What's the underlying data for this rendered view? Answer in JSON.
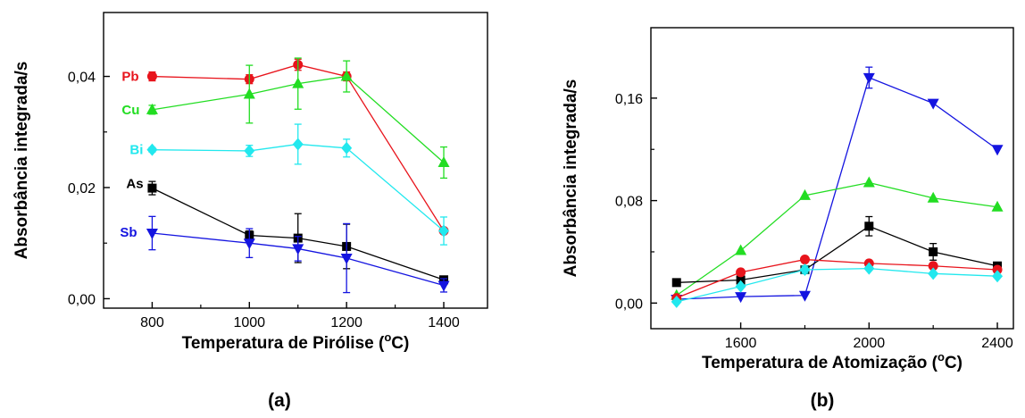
{
  "panel_labels": [
    "(a)",
    "(b)"
  ],
  "chart_data": [
    {
      "type": "line",
      "panel": "(a)",
      "xlabel": "Temperatura de Pirólise (",
      "xlabel_sup": "o",
      "xlabel_unit": "C)",
      "ylabel": "Absorbância integrada/s",
      "xlim": [
        700,
        1490
      ],
      "ylim": [
        -0.0017,
        0.0515
      ],
      "xticks": [
        800,
        1000,
        1200,
        1400
      ],
      "xtick_labels": [
        "800",
        "1000",
        "1200",
        "1400"
      ],
      "yticks": [
        0.0,
        0.02,
        0.04
      ],
      "ytick_labels": [
        "0,00",
        "0,02",
        "0,04"
      ],
      "grid": false,
      "series": [
        {
          "name": "Pb",
          "color": "#e8141c",
          "marker": "circle",
          "x": [
            800,
            1000,
            1100,
            1200,
            1400
          ],
          "y": [
            0.04,
            0.0395,
            0.0421,
            0.04,
            0.0122
          ],
          "err": [
            0.0008,
            0.0008,
            0.001,
            0.0008,
            0.0005
          ]
        },
        {
          "name": "Cu",
          "color": "#22dd22",
          "marker": "triangle-up",
          "x": [
            800,
            1000,
            1100,
            1200,
            1400
          ],
          "y": [
            0.034,
            0.0368,
            0.0387,
            0.04,
            0.0245
          ],
          "err": [
            0.0008,
            0.0052,
            0.0046,
            0.0028,
            0.0028
          ]
        },
        {
          "name": "Bi",
          "color": "#22e8ee",
          "marker": "diamond",
          "x": [
            800,
            1000,
            1100,
            1200,
            1400
          ],
          "y": [
            0.0268,
            0.0266,
            0.0278,
            0.0271,
            0.0122
          ],
          "err": [
            0.0004,
            0.001,
            0.0036,
            0.0016,
            0.0025
          ]
        },
        {
          "name": "As",
          "color": "#000000",
          "marker": "square",
          "x": [
            800,
            1000,
            1100,
            1200,
            1400
          ],
          "y": [
            0.0199,
            0.0114,
            0.0109,
            0.0094,
            0.0034
          ],
          "err": [
            0.0012,
            0.0008,
            0.0044,
            0.004,
            0.0004
          ]
        },
        {
          "name": "Sb",
          "color": "#1414e0",
          "marker": "triangle-down",
          "x": [
            800,
            1000,
            1100,
            1200,
            1400
          ],
          "y": [
            0.0118,
            0.01,
            0.009,
            0.0073,
            0.0024
          ],
          "err": [
            0.003,
            0.0026,
            0.0022,
            0.0062,
            0.0012
          ]
        }
      ],
      "legend": "inline-left"
    },
    {
      "type": "line",
      "panel": "(b)",
      "xlabel": "Temperatura de Atomização (",
      "xlabel_sup": "o",
      "xlabel_unit": "C)",
      "ylabel": "Absorbância integrada/s",
      "xlim": [
        1320,
        2450
      ],
      "ylim": [
        -0.02,
        0.215
      ],
      "xticks": [
        1600,
        2000,
        2400
      ],
      "xtick_labels": [
        "1600",
        "2000",
        "2400"
      ],
      "yticks": [
        0.0,
        0.08,
        0.16
      ],
      "ytick_labels": [
        "0,00",
        "0,08",
        "0,16"
      ],
      "grid": false,
      "series": [
        {
          "color": "#1414e0",
          "marker": "triangle-down",
          "x": [
            1400,
            1600,
            1800,
            2000,
            2200,
            2400
          ],
          "y": [
            0.003,
            0.005,
            0.006,
            0.176,
            0.156,
            0.12
          ],
          "err": [
            0.0,
            0.0,
            0.0,
            0.0082,
            0.0,
            0.0
          ]
        },
        {
          "color": "#22dd22",
          "marker": "triangle-up",
          "x": [
            1400,
            1600,
            1800,
            2000,
            2200,
            2400
          ],
          "y": [
            0.006,
            0.041,
            0.084,
            0.094,
            0.082,
            0.075
          ],
          "err": [
            0.0,
            0.0,
            0.0,
            0.0,
            0.0,
            0.0
          ]
        },
        {
          "color": "#000000",
          "marker": "square",
          "x": [
            1400,
            1600,
            1800,
            2000,
            2200,
            2400
          ],
          "y": [
            0.016,
            0.018,
            0.026,
            0.06,
            0.04,
            0.029
          ],
          "err": [
            0.0,
            0.0,
            0.0,
            0.0075,
            0.0065,
            0.0
          ]
        },
        {
          "color": "#e8141c",
          "marker": "circle",
          "x": [
            1400,
            1600,
            1800,
            2000,
            2200,
            2400
          ],
          "y": [
            0.004,
            0.024,
            0.034,
            0.031,
            0.029,
            0.026
          ],
          "err": [
            0.0,
            0.0,
            0.0,
            0.0,
            0.0,
            0.0
          ]
        },
        {
          "color": "#22e8ee",
          "marker": "diamond",
          "x": [
            1400,
            1600,
            1800,
            2000,
            2200,
            2400
          ],
          "y": [
            0.001,
            0.013,
            0.026,
            0.027,
            0.023,
            0.021
          ],
          "err": [
            0.0,
            0.0,
            0.0028,
            0.0,
            0.0,
            0.0
          ]
        }
      ],
      "legend": "none"
    }
  ]
}
